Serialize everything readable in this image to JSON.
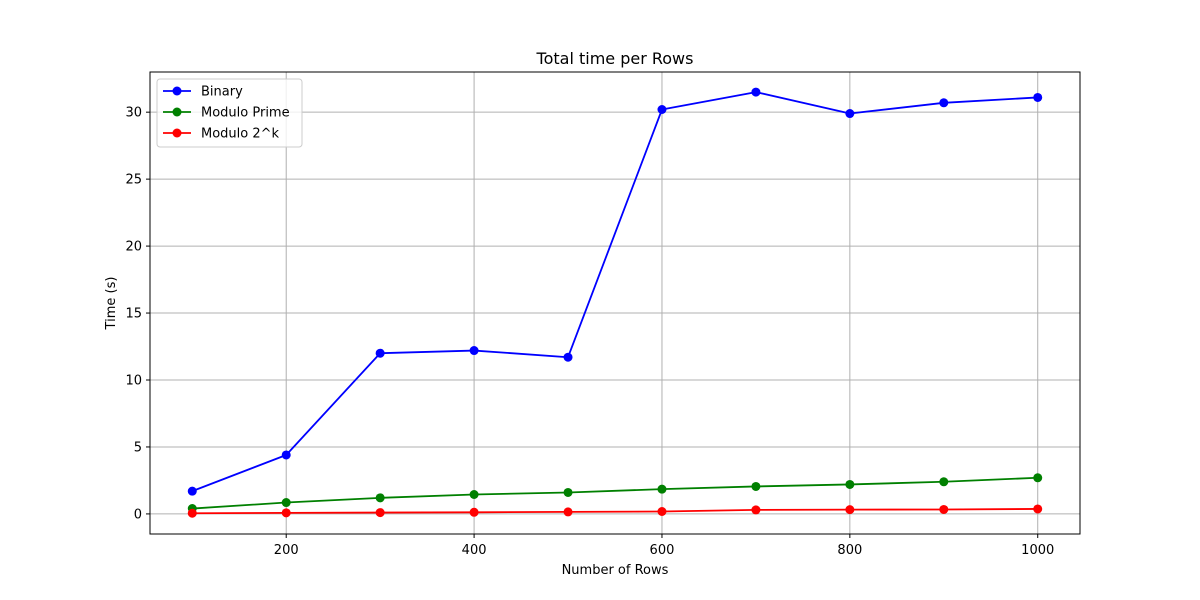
{
  "chart_data": {
    "type": "line",
    "title": "Total time per Rows",
    "xlabel": "Number of Rows",
    "ylabel": "Time (s)",
    "x": [
      100,
      200,
      300,
      400,
      500,
      600,
      700,
      800,
      900,
      1000
    ],
    "xlim": [
      55,
      1045
    ],
    "ylim": [
      -1.5,
      33
    ],
    "xticks": [
      200,
      400,
      600,
      800,
      1000
    ],
    "yticks": [
      0,
      5,
      10,
      15,
      20,
      25,
      30
    ],
    "grid": true,
    "legend_position": "top-left",
    "series": [
      {
        "name": "Binary",
        "color": "#0000ff",
        "values": [
          1.7,
          4.4,
          12.0,
          12.2,
          11.7,
          30.2,
          31.5,
          29.9,
          30.7,
          31.1
        ]
      },
      {
        "name": "Modulo Prime",
        "color": "#008000",
        "values": [
          0.4,
          0.85,
          1.2,
          1.45,
          1.6,
          1.85,
          2.05,
          2.2,
          2.4,
          2.7
        ]
      },
      {
        "name": "Modulo 2^k",
        "color": "#ff0000",
        "values": [
          0.05,
          0.08,
          0.1,
          0.12,
          0.15,
          0.18,
          0.3,
          0.32,
          0.33,
          0.37
        ]
      }
    ]
  }
}
